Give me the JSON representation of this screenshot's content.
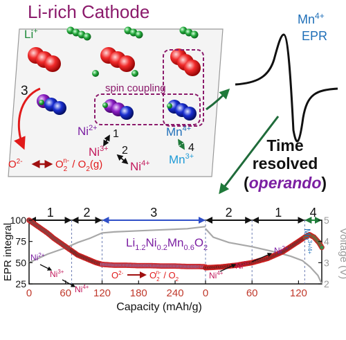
{
  "title": "Li-rich Cathode",
  "colors": {
    "title": "#8b1a6b",
    "green": "#1f8a3a",
    "blue": "#1f6fb8",
    "purple": "#7b1fa2",
    "red": "#e11a1a",
    "magenta": "#c2185b",
    "black": "#111111",
    "gray": "#9a9a9a",
    "cyan": "#1e9ad6",
    "slate": "#6b7cb3"
  },
  "diagram": {
    "li_label": "Li",
    "li_sup": "+",
    "spin_coupling": "spin coupling",
    "step3": "3",
    "step1": "1",
    "step2": "2",
    "step4": "4",
    "ni2": "Ni",
    "ni2_sup": "2+",
    "ni3": "Ni",
    "ni3_sup": "3+",
    "ni4": "Ni",
    "ni4_sup": "4+",
    "mn4": "Mn",
    "mn4_sup": "4+",
    "mn3": "Mn",
    "mn3_sup": "3+",
    "oxygen_left": "O",
    "oxygen_left_sup": "2-",
    "oxygen_right": "O",
    "oxygen_right_sub": "2",
    "oxygen_right_sup": "n-",
    "oxygen_right_tail": " / O",
    "oxygen_right_tail_sub": "2",
    "oxygen_right_g": "(g)"
  },
  "epr_panel": {
    "label_line1": "Mn",
    "label_line1_sup": "4+",
    "label_line2": "EPR",
    "time_resolved_1": "Time",
    "time_resolved_2": "resolved",
    "operando_open": "(",
    "operando": "operando",
    "operando_close": ")"
  },
  "chart_data": {
    "type": "line",
    "ylabel_left": "EPR integral",
    "ylabel_right": "Voltage (V)",
    "xlabel": "Capacity (mAh/g)",
    "compound": "Li",
    "compound_parts": [
      "1.2",
      "Ni",
      "0.2",
      "Mn",
      "0.6",
      "O",
      "2"
    ],
    "left_ticks": [
      "25",
      "50",
      "75",
      "100"
    ],
    "right_ticks": [
      "2",
      "3",
      "4",
      "5"
    ],
    "x_ticks_charge": [
      "0",
      "60",
      "120",
      "180",
      "240"
    ],
    "x_ticks_discharge": [
      "0",
      "60",
      "120"
    ],
    "segments": [
      "1",
      "2",
      "3",
      "2",
      "1",
      "4"
    ],
    "annotations": {
      "ni2_left": "Ni",
      "ni2_left_sup": "2+",
      "ni3_left": "Ni",
      "ni3_left_sup": "3+",
      "ni4_left": "Ni",
      "ni4_left_sup": "4+",
      "oxy_text": "O",
      "oxy_sup": "2-",
      "oxy_right": "O",
      "oxy_right_sub": "2",
      "oxy_right_sup": "n-",
      "oxy_right_tail": " / O",
      "oxy_right_tail_sub": "2",
      "ni4_right": "Ni",
      "ni4_right_sup": "4+",
      "ni3_right": "Ni",
      "ni3_right_sup": "3+",
      "ni2_right": "Ni",
      "ni2_right_sup": "2+",
      "mn_right": "Mn",
      "mn_right_sup": "3+/4+"
    },
    "ylim_left": [
      25,
      100
    ],
    "ylim_right": [
      2,
      5
    ],
    "charge_capacity_range": [
      0,
      290
    ],
    "discharge_capacity_range": [
      0,
      150
    ],
    "epr_charge": [
      [
        0,
        100
      ],
      [
        10,
        95
      ],
      [
        20,
        90
      ],
      [
        30,
        85
      ],
      [
        40,
        79
      ],
      [
        50,
        74
      ],
      [
        60,
        69
      ],
      [
        70,
        64
      ],
      [
        80,
        59
      ],
      [
        90,
        56
      ],
      [
        100,
        53
      ],
      [
        110,
        50
      ],
      [
        120,
        48
      ],
      [
        140,
        47
      ],
      [
        160,
        47
      ],
      [
        180,
        46.5
      ],
      [
        200,
        46.5
      ],
      [
        220,
        46
      ],
      [
        240,
        46
      ],
      [
        260,
        45.5
      ],
      [
        280,
        45.5
      ],
      [
        290,
        45
      ]
    ],
    "epr_discharge": [
      [
        0,
        44
      ],
      [
        20,
        45
      ],
      [
        40,
        47
      ],
      [
        60,
        50
      ],
      [
        80,
        55
      ],
      [
        100,
        63
      ],
      [
        110,
        69
      ],
      [
        120,
        75
      ],
      [
        128,
        80
      ],
      [
        134,
        83
      ],
      [
        140,
        80
      ],
      [
        146,
        74
      ],
      [
        150,
        68
      ]
    ],
    "voltage_charge": [
      [
        0,
        3.0
      ],
      [
        30,
        3.4
      ],
      [
        60,
        3.7
      ],
      [
        80,
        3.95
      ],
      [
        100,
        4.15
      ],
      [
        120,
        4.4
      ],
      [
        140,
        4.45
      ],
      [
        180,
        4.5
      ],
      [
        220,
        4.55
      ],
      [
        260,
        4.6
      ],
      [
        290,
        4.7
      ]
    ],
    "voltage_discharge": [
      [
        0,
        4.6
      ],
      [
        10,
        4.2
      ],
      [
        30,
        3.95
      ],
      [
        60,
        3.75
      ],
      [
        90,
        3.5
      ],
      [
        110,
        3.3
      ],
      [
        125,
        3.1
      ],
      [
        135,
        2.8
      ],
      [
        145,
        2.4
      ],
      [
        150,
        2.0
      ]
    ]
  }
}
